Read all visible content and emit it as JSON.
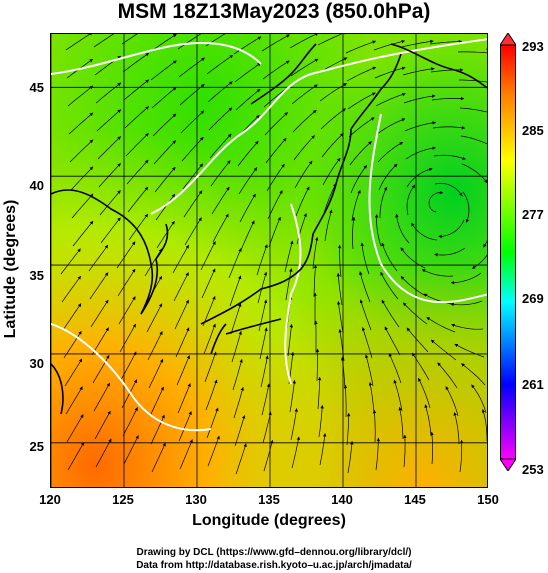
{
  "title": "MSM 18Z13May2023 (850.0hPa)",
  "xaxis": {
    "label": "Longitude (degrees)",
    "range": [
      120,
      150
    ],
    "ticks": [
      "120",
      "125",
      "130",
      "135",
      "140",
      "145",
      "150"
    ]
  },
  "yaxis": {
    "label": "Latitude  (degrees)",
    "range": [
      22.4,
      48
    ],
    "ticks": [
      "25",
      "30",
      "35",
      "40",
      "45"
    ]
  },
  "colorbar": {
    "ticks": [
      "293",
      "285",
      "277",
      "269",
      "261",
      "253"
    ],
    "range": [
      253,
      293
    ],
    "colors": [
      "#ff00ff",
      "#0000ff",
      "#00ffff",
      "#00ff00",
      "#ffff00",
      "#ff8000",
      "#ff0000"
    ]
  },
  "map_features": {
    "land_outline_color": "#000000",
    "contour_color": "#ffffff",
    "streamline_color": "#000000",
    "cyclone_center": {
      "lon": 146.5,
      "lat": 38.5
    }
  },
  "credits": {
    "line1": "Drawing by DCL (https://www.gfd–dennou.org/library/dcl/)",
    "line2": "Data from http://database.rish.kyoto–u.ac.jp/arch/jmadata/"
  }
}
